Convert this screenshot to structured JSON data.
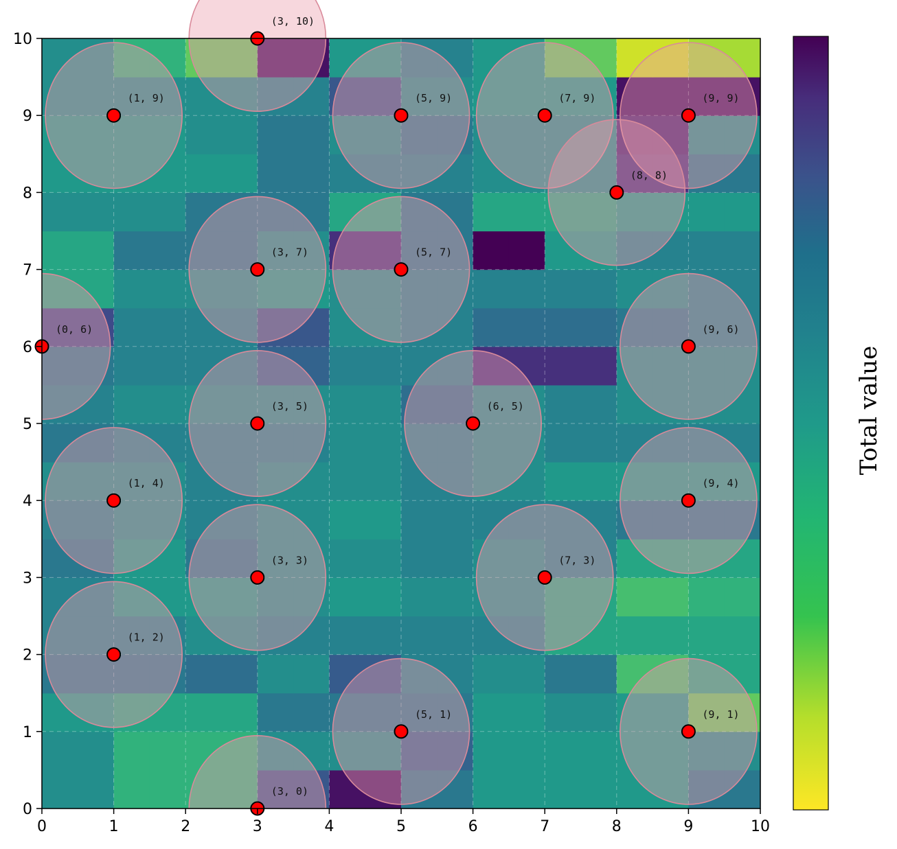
{
  "chart_data": {
    "type": "heatmap",
    "title": "",
    "xlabel": "",
    "ylabel": "",
    "xlim": [
      0,
      10
    ],
    "ylim": [
      0,
      10
    ],
    "x_ticks": [
      "0",
      "1",
      "2",
      "3",
      "4",
      "5",
      "6",
      "7",
      "8",
      "9",
      "10"
    ],
    "y_ticks": [
      "0",
      "1",
      "2",
      "3",
      "4",
      "5",
      "6",
      "7",
      "8",
      "9",
      "10"
    ],
    "grid": true,
    "grid_note": "20x20 cells, row 0 = bottom (y 0-0.5), values 0..1 mapped on colormap",
    "cells": [
      [
        0.45,
        0.45,
        0.3,
        0.3,
        0.3,
        0.3,
        0.7,
        0.7,
        0.95,
        0.95,
        0.55,
        0.55,
        0.4,
        0.4,
        0.4,
        0.4,
        0.4,
        0.4,
        0.55,
        0.55
      ],
      [
        0.45,
        0.45,
        0.3,
        0.3,
        0.3,
        0.3,
        0.45,
        0.45,
        0.45,
        0.45,
        0.65,
        0.65,
        0.4,
        0.4,
        0.4,
        0.4,
        0.4,
        0.4,
        0.45,
        0.45
      ],
      [
        0.4,
        0.4,
        0.35,
        0.35,
        0.35,
        0.35,
        0.55,
        0.55,
        0.55,
        0.55,
        0.55,
        0.55,
        0.4,
        0.4,
        0.45,
        0.45,
        0.4,
        0.4,
        0.2,
        0.2
      ],
      [
        0.55,
        0.55,
        0.55,
        0.55,
        0.6,
        0.6,
        0.45,
        0.45,
        0.68,
        0.68,
        0.5,
        0.5,
        0.45,
        0.45,
        0.55,
        0.55,
        0.25,
        0.25,
        0.35,
        0.35
      ],
      [
        0.5,
        0.5,
        0.5,
        0.5,
        0.45,
        0.45,
        0.5,
        0.5,
        0.5,
        0.5,
        0.5,
        0.5,
        0.5,
        0.5,
        0.35,
        0.35,
        0.35,
        0.35,
        0.35,
        0.35
      ],
      [
        0.5,
        0.5,
        0.4,
        0.4,
        0.4,
        0.4,
        0.45,
        0.45,
        0.4,
        0.4,
        0.45,
        0.45,
        0.45,
        0.45,
        0.35,
        0.35,
        0.25,
        0.25,
        0.3,
        0.3
      ],
      [
        0.55,
        0.55,
        0.4,
        0.4,
        0.55,
        0.55,
        0.45,
        0.45,
        0.45,
        0.45,
        0.5,
        0.5,
        0.45,
        0.45,
        0.5,
        0.5,
        0.35,
        0.35,
        0.35,
        0.35
      ],
      [
        0.5,
        0.5,
        0.45,
        0.45,
        0.5,
        0.5,
        0.45,
        0.45,
        0.4,
        0.4,
        0.5,
        0.5,
        0.5,
        0.5,
        0.5,
        0.5,
        0.55,
        0.55,
        0.55,
        0.55
      ],
      [
        0.45,
        0.45,
        0.45,
        0.45,
        0.5,
        0.5,
        0.45,
        0.45,
        0.45,
        0.45,
        0.5,
        0.5,
        0.45,
        0.45,
        0.4,
        0.4,
        0.4,
        0.4,
        0.4,
        0.4
      ],
      [
        0.55,
        0.55,
        0.5,
        0.5,
        0.5,
        0.5,
        0.5,
        0.5,
        0.45,
        0.45,
        0.5,
        0.5,
        0.45,
        0.45,
        0.5,
        0.5,
        0.5,
        0.5,
        0.5,
        0.5
      ],
      [
        0.5,
        0.5,
        0.45,
        0.45,
        0.45,
        0.45,
        0.45,
        0.45,
        0.45,
        0.45,
        0.6,
        0.6,
        0.45,
        0.45,
        0.5,
        0.5,
        0.45,
        0.45,
        0.45,
        0.45
      ],
      [
        0.55,
        0.55,
        0.5,
        0.5,
        0.5,
        0.5,
        0.65,
        0.65,
        0.5,
        0.5,
        0.5,
        0.5,
        0.85,
        0.85,
        0.85,
        0.85,
        0.45,
        0.45,
        0.45,
        0.45
      ],
      [
        0.75,
        0.75,
        0.5,
        0.5,
        0.5,
        0.5,
        0.7,
        0.7,
        0.45,
        0.45,
        0.5,
        0.5,
        0.6,
        0.6,
        0.6,
        0.6,
        0.55,
        0.55,
        0.5,
        0.5
      ],
      [
        0.35,
        0.35,
        0.45,
        0.45,
        0.45,
        0.45,
        0.4,
        0.4,
        0.45,
        0.45,
        0.5,
        0.5,
        0.5,
        0.5,
        0.5,
        0.5,
        0.45,
        0.45,
        0.5,
        0.5
      ],
      [
        0.35,
        0.35,
        0.55,
        0.55,
        0.55,
        0.55,
        0.45,
        0.45,
        0.85,
        0.85,
        0.55,
        0.55,
        1.0,
        1.0,
        0.4,
        0.4,
        0.5,
        0.5,
        0.5,
        0.5
      ],
      [
        0.45,
        0.45,
        0.45,
        0.45,
        0.55,
        0.55,
        0.55,
        0.55,
        0.35,
        0.35,
        0.55,
        0.55,
        0.35,
        0.35,
        0.35,
        0.35,
        0.4,
        0.4,
        0.4,
        0.4
      ],
      [
        0.4,
        0.4,
        0.4,
        0.4,
        0.4,
        0.4,
        0.55,
        0.55,
        0.5,
        0.5,
        0.5,
        0.5,
        0.45,
        0.45,
        0.45,
        0.45,
        0.85,
        0.85,
        0.55,
        0.55
      ],
      [
        0.4,
        0.4,
        0.4,
        0.4,
        0.45,
        0.45,
        0.55,
        0.55,
        0.45,
        0.45,
        0.55,
        0.55,
        0.45,
        0.45,
        0.45,
        0.45,
        0.9,
        0.9,
        0.45,
        0.45
      ],
      [
        0.45,
        0.45,
        0.45,
        0.45,
        0.45,
        0.45,
        0.5,
        0.5,
        0.7,
        0.7,
        0.45,
        0.45,
        0.4,
        0.4,
        0.4,
        0.4,
        0.95,
        0.95,
        0.95,
        0.95
      ],
      [
        0.45,
        0.45,
        0.3,
        0.3,
        0.2,
        0.2,
        0.95,
        0.95,
        0.4,
        0.4,
        0.5,
        0.5,
        0.4,
        0.4,
        0.2,
        0.2,
        0.05,
        0.05,
        0.1,
        0.1
      ]
    ],
    "points": [
      {
        "x": 3,
        "y": 10,
        "label": "(3, 10)"
      },
      {
        "x": 1,
        "y": 9,
        "label": "(1, 9)"
      },
      {
        "x": 5,
        "y": 9,
        "label": "(5, 9)"
      },
      {
        "x": 7,
        "y": 9,
        "label": "(7, 9)"
      },
      {
        "x": 9,
        "y": 9,
        "label": "(9, 9)"
      },
      {
        "x": 8,
        "y": 8,
        "label": "(8, 8)"
      },
      {
        "x": 3,
        "y": 7,
        "label": "(3, 7)"
      },
      {
        "x": 5,
        "y": 7,
        "label": "(5, 7)"
      },
      {
        "x": 0,
        "y": 6,
        "label": "(0, 6)"
      },
      {
        "x": 9,
        "y": 6,
        "label": "(9, 6)"
      },
      {
        "x": 3,
        "y": 5,
        "label": "(3, 5)"
      },
      {
        "x": 6,
        "y": 5,
        "label": "(6, 5)"
      },
      {
        "x": 1,
        "y": 4,
        "label": "(1, 4)"
      },
      {
        "x": 9,
        "y": 4,
        "label": "(9, 4)"
      },
      {
        "x": 3,
        "y": 3,
        "label": "(3, 3)"
      },
      {
        "x": 7,
        "y": 3,
        "label": "(7, 3)"
      },
      {
        "x": 1,
        "y": 2,
        "label": "(1, 2)"
      },
      {
        "x": 5,
        "y": 1,
        "label": "(5, 1)"
      },
      {
        "x": 9,
        "y": 1,
        "label": "(9, 1)"
      },
      {
        "x": 3,
        "y": 0,
        "label": "(3, 0)"
      }
    ],
    "coverage_radius": 1,
    "colorbar": {
      "label": "Total value",
      "colormap": "viridis_r",
      "tick_labels": []
    },
    "colors": {
      "point_fill": "#ff0000",
      "point_stroke": "#000000",
      "circle_fill": "rgba(235,160,175,0.42)",
      "circle_stroke": "#d98a9a"
    }
  }
}
